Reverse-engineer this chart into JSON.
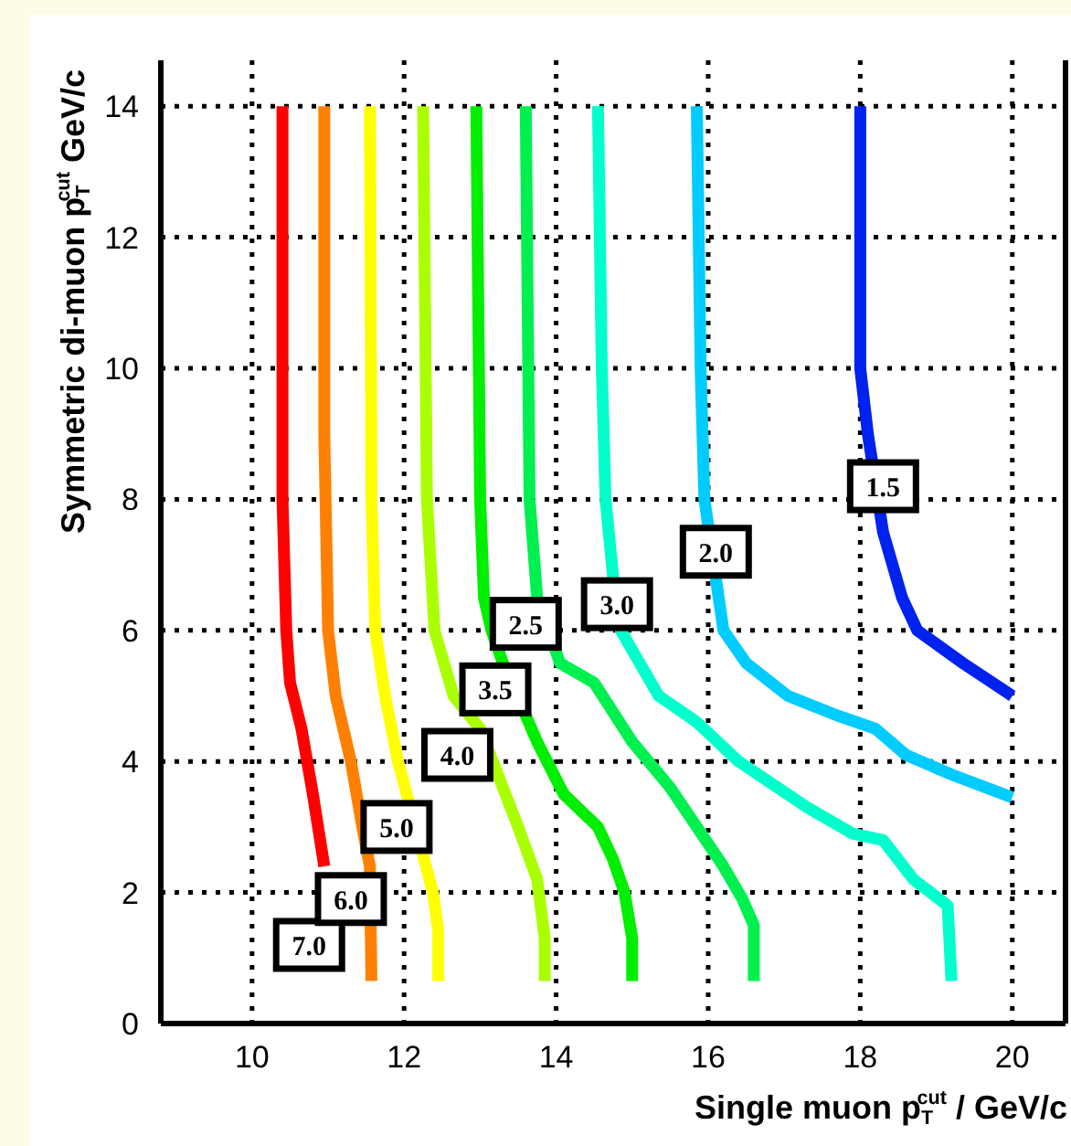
{
  "chart_data": {
    "type": "line",
    "xlabel": "Single muon p$_{T}$$^{cut}$ / GeV/c",
    "ylabel": "Symmetric di-muon p$_{T}$$^{cut}$ GeV/c",
    "xlim": [
      8.8,
      20.7
    ],
    "ylim": [
      0,
      14.7
    ],
    "xticks": [
      10,
      12,
      14,
      16,
      18,
      20
    ],
    "yticks": [
      0,
      2,
      4,
      6,
      8,
      10,
      12,
      14
    ],
    "grid": true,
    "marker": "none",
    "line_style": "solid",
    "series": [
      {
        "color": "#ff0000",
        "x": [
          10.4,
          10.4,
          10.45,
          10.5,
          10.65,
          10.8,
          10.95
        ],
        "values": [
          14,
          8,
          6,
          5.2,
          4.5,
          3.5,
          2.4
        ]
      },
      {
        "color": "#ff8000",
        "x": [
          10.95,
          10.95,
          11.0,
          11.1,
          11.3,
          11.45,
          11.55,
          11.57
        ],
        "values": [
          14,
          9,
          6,
          5,
          4,
          3,
          2.4,
          0.65
        ]
      },
      {
        "color": "#ffff00",
        "x": [
          11.55,
          11.57,
          11.62,
          11.75,
          11.92,
          12.38,
          12.45,
          12.45
        ],
        "values": [
          14,
          8,
          6,
          5,
          4,
          2,
          1.4,
          0.65
        ]
      },
      {
        "color": "#aaff00",
        "x": [
          12.25,
          12.3,
          12.4,
          12.65,
          13.0,
          13.2,
          13.5,
          13.75,
          13.85,
          13.85
        ],
        "values": [
          14,
          8,
          6,
          5,
          4.5,
          3.9,
          3,
          2.2,
          1.3,
          0.65
        ]
      },
      {
        "color": "#00ee00",
        "x": [
          12.95,
          13.0,
          13.05,
          13.15,
          13.3,
          13.75,
          14.1,
          14.55,
          14.75,
          14.9,
          15.0,
          15.0
        ],
        "values": [
          14,
          8,
          6.5,
          6,
          5.5,
          4.3,
          3.5,
          3,
          2.5,
          2,
          1.3,
          0.65
        ]
      },
      {
        "color": "#00f050",
        "x": [
          13.6,
          13.65,
          13.75,
          14.05,
          14.5,
          15.0,
          15.5,
          15.85,
          16.2,
          16.45,
          16.6,
          16.6
        ],
        "values": [
          14,
          8,
          6.5,
          5.5,
          5.2,
          4.3,
          3.6,
          3,
          2.4,
          1.9,
          1.5,
          0.65
        ]
      },
      {
        "color": "#00ffcc",
        "x": [
          14.55,
          14.6,
          14.65,
          14.75,
          14.85,
          15.1,
          15.35,
          15.85,
          16.4,
          17.3,
          17.9,
          18.3,
          18.7,
          19.15,
          19.2
        ],
        "values": [
          14,
          10,
          8,
          6.8,
          6,
          5.5,
          5,
          4.6,
          4,
          3.3,
          2.9,
          2.8,
          2.2,
          1.8,
          0.65
        ]
      },
      {
        "color": "#00ccff",
        "x": [
          15.85,
          15.9,
          15.95,
          16.2,
          16.5,
          17.05,
          17.7,
          18.2,
          18.6,
          19.2,
          20.0
        ],
        "values": [
          14,
          10,
          8,
          6,
          5.5,
          5,
          4.7,
          4.5,
          4.1,
          3.8,
          3.45
        ]
      },
      {
        "color": "#0022ee",
        "x": [
          18.0,
          18.0,
          18.1,
          18.3,
          18.55,
          18.75,
          19.35,
          20.0
        ],
        "values": [
          14,
          10,
          9,
          7.5,
          6.5,
          6,
          5.5,
          5.0
        ]
      }
    ],
    "annotations": [
      {
        "text": "7.0",
        "x": 10.75,
        "y": 1.2
      },
      {
        "text": "6.0",
        "x": 11.3,
        "y": 1.9
      },
      {
        "text": "5.0",
        "x": 11.9,
        "y": 3.0
      },
      {
        "text": "4.0",
        "x": 12.7,
        "y": 4.1
      },
      {
        "text": "3.5",
        "x": 13.2,
        "y": 5.1
      },
      {
        "text": "2.5",
        "x": 13.6,
        "y": 6.1
      },
      {
        "text": "3.0",
        "x": 14.8,
        "y": 6.4
      },
      {
        "text": "2.0",
        "x": 16.1,
        "y": 7.2
      },
      {
        "text": "1.5",
        "x": 18.3,
        "y": 8.2
      }
    ]
  }
}
